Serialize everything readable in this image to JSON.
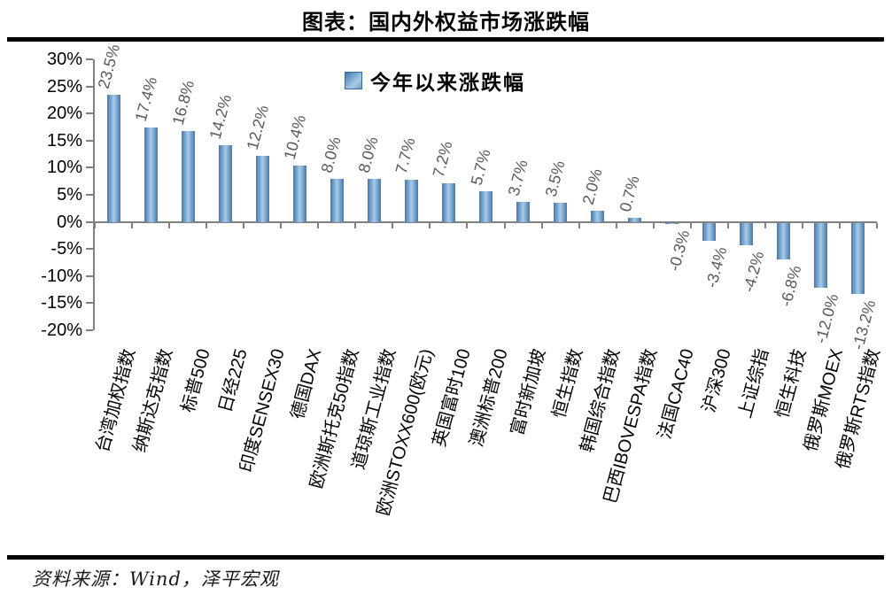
{
  "page": {
    "title": "图表：国内外权益市场涨跌幅",
    "source": "资料来源：Wind，泽平宏观"
  },
  "chart_data": {
    "type": "bar",
    "title": "图表：国内外权益市场涨跌幅",
    "series_name": "今年以来涨跌幅",
    "categories": [
      "台湾加权指数",
      "纳斯达克指数",
      "标普500",
      "日经225",
      "印度SENSEX30",
      "德国DAX",
      "欧洲斯托克50指数",
      "道琼斯工业指数",
      "欧洲STOXX600(欧元)",
      "英国富时100",
      "澳洲标普200",
      "富时新加坡",
      "恒生指数",
      "韩国综合指数",
      "巴西IBOVESPA指数",
      "法国CAC40",
      "沪深300",
      "上证综指",
      "恒生科技",
      "俄罗斯MOEX",
      "俄罗斯RTS指数"
    ],
    "values": [
      23.5,
      17.4,
      16.8,
      14.2,
      12.2,
      10.4,
      8.0,
      8.0,
      7.7,
      7.2,
      5.7,
      3.7,
      3.5,
      2.0,
      0.7,
      -0.3,
      -3.4,
      -4.2,
      -6.8,
      -12.0,
      -13.2
    ],
    "value_labels": [
      "23.5%",
      "17.4%",
      "16.8%",
      "14.2%",
      "12.2%",
      "10.4%",
      "8.0%",
      "8.0%",
      "7.7%",
      "7.2%",
      "5.7%",
      "3.7%",
      "3.5%",
      "2.0%",
      "0.7%",
      "-0.3%",
      "-3.4%",
      "-4.2%",
      "-6.8%",
      "-12.0%",
      "-13.2%"
    ],
    "ylim": [
      -20,
      30
    ],
    "ytick_step": 5,
    "ytick_labels": [
      "30%",
      "25%",
      "20%",
      "15%",
      "10%",
      "5%",
      "0%",
      "-5%",
      "-10%",
      "-15%",
      "-20%"
    ],
    "xlabel": "",
    "ylabel": "",
    "grid": false,
    "legend_position": "top-center",
    "colors": {
      "bar_edge": "#3e79b4",
      "bar_center": "#a9cbe6",
      "axis": "#808080",
      "value_label": "#595959",
      "text": "#000000"
    }
  }
}
